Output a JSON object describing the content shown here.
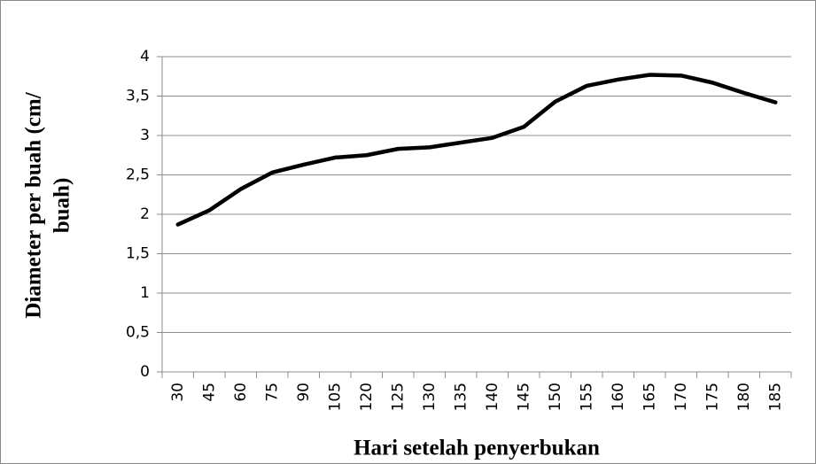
{
  "chart_data": {
    "type": "line",
    "xlabel": "Hari setelah penyerbukan",
    "ylabel": [
      "Diameter  per buah (cm/",
      "buah)"
    ],
    "categories": [
      "30",
      "45",
      "60",
      "75",
      "90",
      "105",
      "120",
      "125",
      "130",
      "135",
      "140",
      "145",
      "150",
      "155",
      "160",
      "165",
      "170",
      "175",
      "180",
      "185"
    ],
    "series": [
      {
        "name": "Diameter",
        "color": "#000000",
        "values": [
          1.87,
          2.05,
          2.32,
          2.53,
          2.63,
          2.72,
          2.75,
          2.83,
          2.85,
          2.91,
          2.97,
          3.11,
          3.43,
          3.63,
          3.71,
          3.77,
          3.76,
          3.67,
          3.54,
          3.42
        ]
      }
    ],
    "ylim": [
      0,
      4
    ],
    "yticks": [
      0,
      {
        "value": 0.5,
        "label": "0,5"
      },
      1,
      {
        "value": 1.5,
        "label": "1,5"
      },
      2,
      {
        "value": 2.5,
        "label": "2,5"
      },
      3,
      {
        "value": 3.5,
        "label": "3,5"
      },
      4
    ],
    "grid": true
  }
}
